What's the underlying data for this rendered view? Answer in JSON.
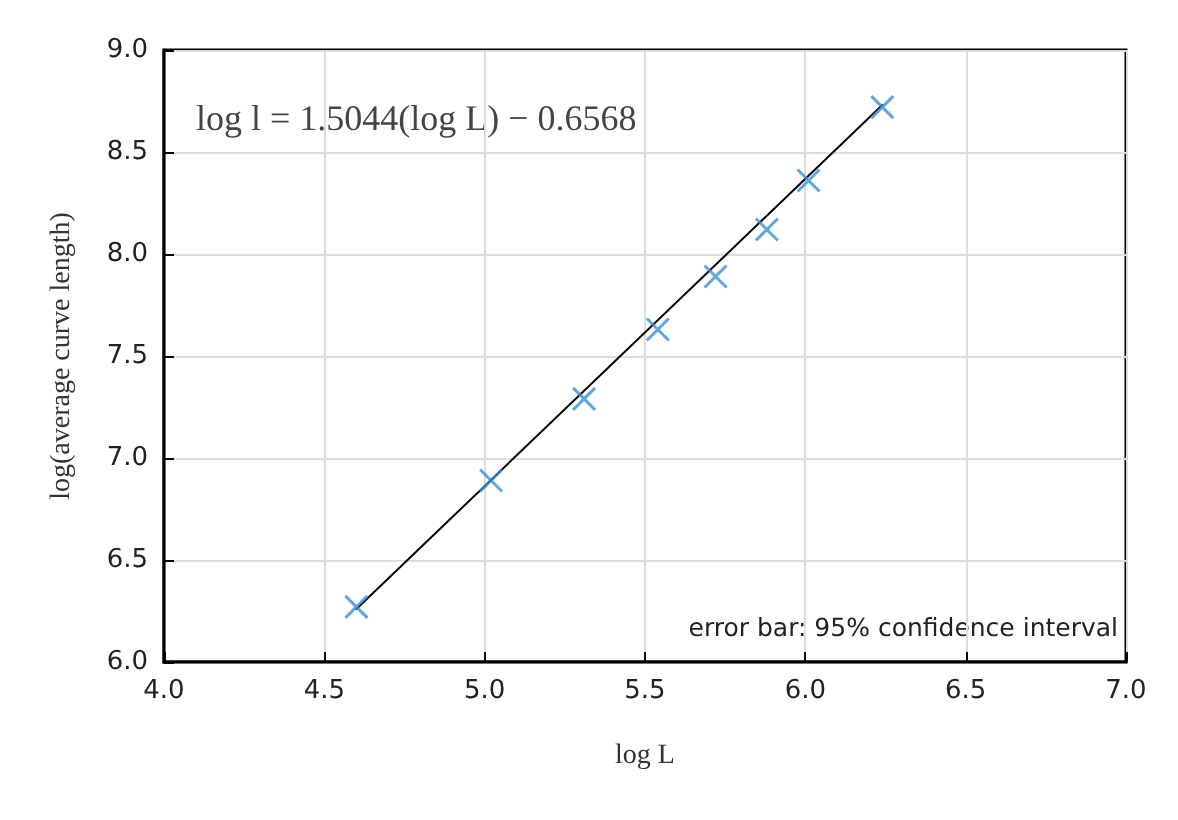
{
  "chart_data": {
    "type": "scatter",
    "xlabel": "log L",
    "ylabel": "log(average curve length)",
    "annotations": [
      "log l = 1.5044(log L) − 0.6568",
      "error bar: 95% confidence interval"
    ],
    "series": [
      {
        "color": "#3a8fd9",
        "marker": "cross",
        "x": [
          4.6,
          5.02,
          5.31,
          5.54,
          5.72,
          5.88,
          6.01,
          6.24
        ],
        "values": [
          6.27,
          6.89,
          7.29,
          7.63,
          7.89,
          8.12,
          8.36,
          8.72
        ]
      },
      {
        "type": "line",
        "color": "#000000",
        "marker": "none",
        "line_style": "solid",
        "x": [
          4.6,
          6.24
        ],
        "values": [
          6.26,
          8.73
        ]
      }
    ],
    "xlim": [
      4,
      7
    ],
    "ylim": [
      6,
      9
    ],
    "xticks": [
      {
        "value": 4,
        "label": "4.0"
      },
      4.5,
      {
        "value": 5,
        "label": "5.0"
      },
      5.5,
      {
        "value": 6,
        "label": "6.0"
      },
      6.5,
      {
        "value": 7,
        "label": "7.0"
      }
    ],
    "yticks": [
      {
        "value": 6,
        "label": "6.0"
      },
      6.5,
      {
        "value": 7,
        "label": "7.0"
      },
      7.5,
      {
        "value": 8,
        "label": "8.0"
      },
      8.5,
      {
        "value": 9,
        "label": "9.0"
      }
    ],
    "grid": true
  }
}
